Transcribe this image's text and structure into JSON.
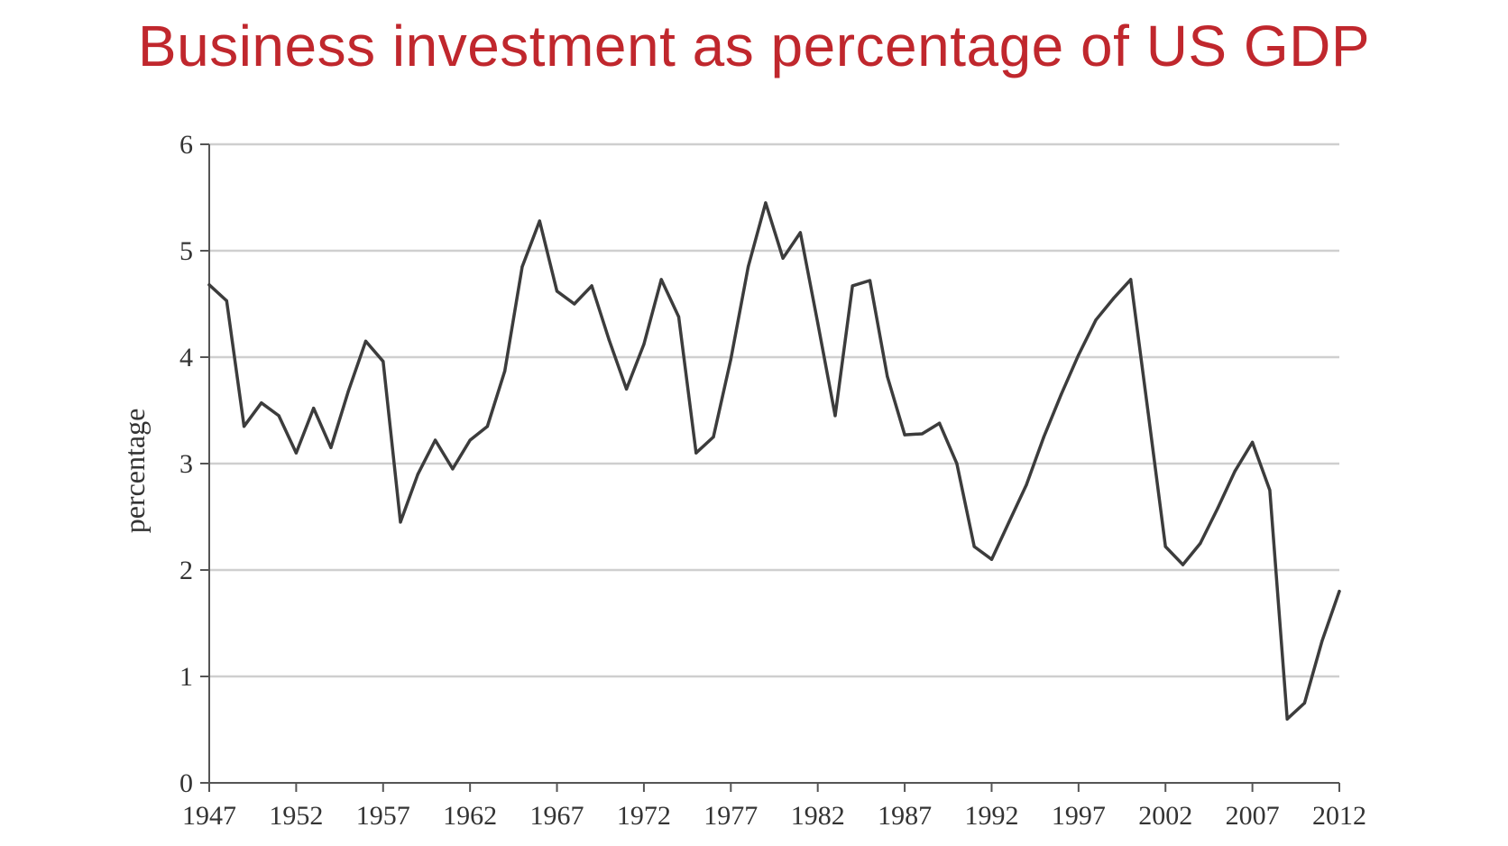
{
  "title": "Business investment as percentage of US GDP",
  "chart_data": {
    "type": "line",
    "title": "Business investment as percentage of US GDP",
    "xlabel": "",
    "ylabel": "percentage",
    "ylim": [
      0,
      6
    ],
    "xlim": [
      1947,
      2012
    ],
    "grid": "horizontal",
    "line_color": "#3c3c3c",
    "title_color": "#c0272d",
    "y_ticks": [
      0,
      1,
      2,
      3,
      4,
      5,
      6
    ],
    "x_ticks": [
      1947,
      1952,
      1957,
      1962,
      1967,
      1972,
      1977,
      1982,
      1987,
      1992,
      1997,
      2002,
      2007,
      2012
    ],
    "series": [
      {
        "x": [
          1947,
          1948,
          1949,
          1950,
          1951,
          1952,
          1953,
          1954,
          1955,
          1956,
          1957,
          1958,
          1959,
          1960,
          1961,
          1962,
          1963,
          1964,
          1965,
          1966,
          1967,
          1968,
          1969,
          1970,
          1971,
          1972,
          1973,
          1974,
          1975,
          1976,
          1977,
          1978,
          1979,
          1980,
          1981,
          1982,
          1983,
          1984,
          1985,
          1986,
          1987,
          1988,
          1989,
          1990,
          1991,
          1992,
          1993,
          1994,
          1995,
          1996,
          1997,
          1998,
          1999,
          2000,
          2001,
          2002,
          2003,
          2004,
          2005,
          2006,
          2007,
          2008,
          2009,
          2010,
          2011,
          2012
        ],
        "values": [
          4.68,
          4.53,
          3.35,
          3.57,
          3.45,
          3.1,
          3.52,
          3.15,
          3.68,
          4.15,
          3.96,
          2.45,
          2.9,
          3.22,
          2.95,
          3.22,
          3.35,
          3.87,
          4.85,
          5.28,
          4.62,
          4.5,
          4.67,
          4.16,
          3.7,
          4.12,
          4.73,
          4.38,
          3.1,
          3.25,
          3.98,
          4.85,
          5.45,
          4.93,
          5.17,
          4.32,
          3.45,
          4.67,
          4.72,
          3.82,
          3.27,
          3.28,
          3.38,
          3.0,
          2.22,
          2.1,
          2.45,
          2.8,
          3.25,
          3.65,
          4.02,
          4.35,
          4.55,
          4.73,
          3.48,
          2.22,
          2.05,
          2.25,
          2.58,
          2.93,
          3.2,
          2.75,
          0.6,
          0.75,
          1.33,
          1.8
        ]
      }
    ]
  }
}
